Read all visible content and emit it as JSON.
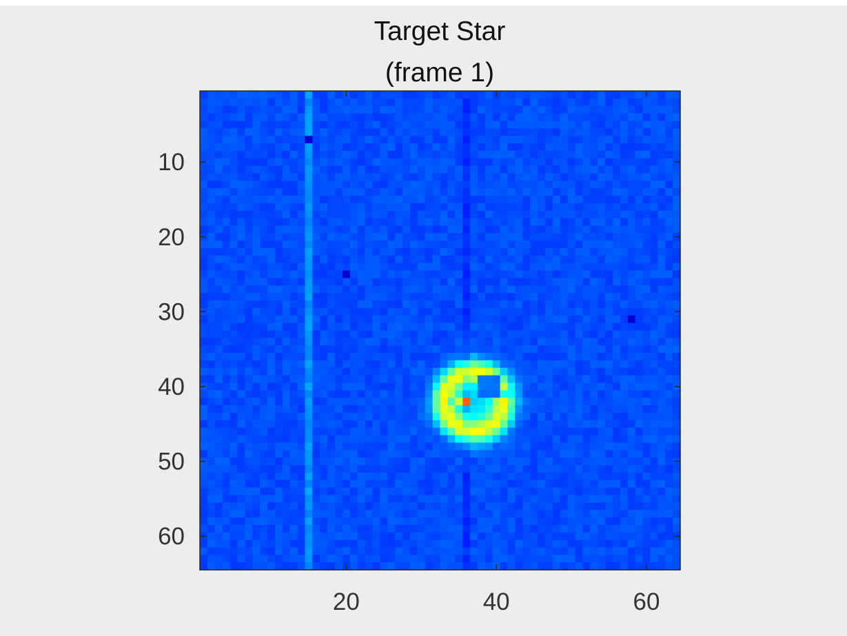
{
  "chart_data": {
    "type": "heatmap",
    "title_lines": [
      "Target Star",
      "(frame 1)"
    ],
    "xlabel": "",
    "ylabel": "",
    "grid": false,
    "colormap": "jet",
    "x_range": [
      0.5,
      64.5
    ],
    "y_range": [
      0.5,
      64.5
    ],
    "y_reversed": true,
    "rows": 64,
    "cols": 64,
    "x_ticks": [
      {
        "value": 20,
        "label": "20"
      },
      {
        "value": 40,
        "label": "40"
      },
      {
        "value": 60,
        "label": "60"
      }
    ],
    "y_ticks": [
      {
        "value": 10,
        "label": "10"
      },
      {
        "value": 20,
        "label": "20"
      },
      {
        "value": 30,
        "label": "30"
      },
      {
        "value": 40,
        "label": "40"
      },
      {
        "value": 50,
        "label": "50"
      },
      {
        "value": 60,
        "label": "60"
      }
    ],
    "background_level": 0.2,
    "noise_amplitude": 0.04,
    "bright_column": {
      "col": 15,
      "level": 0.27
    },
    "dim_columns": [
      {
        "col": 36,
        "level": 0.17
      }
    ],
    "source": {
      "center_col": 37,
      "center_row": 42,
      "ring_radius": 4,
      "ring_peak": 0.36,
      "ring_width": 2.2,
      "halo_peak": 0.14,
      "halo_width": 6,
      "hole": {
        "col": 39,
        "row": 40
      },
      "hot_pixels": [
        {
          "col": 35,
          "row": 42,
          "value": 0.58
        },
        {
          "col": 36,
          "row": 42,
          "value": 0.78
        },
        {
          "col": 34,
          "row": 42,
          "value": 0.45
        },
        {
          "col": 35,
          "row": 41,
          "value": 0.42
        },
        {
          "col": 41,
          "row": 41,
          "value": 0.4
        },
        {
          "col": 42,
          "row": 41,
          "value": 0.38
        }
      ]
    },
    "dark_pixels": [
      {
        "col": 15,
        "row": 7
      },
      {
        "col": 20,
        "row": 25
      },
      {
        "col": 58,
        "row": 31
      }
    ]
  }
}
